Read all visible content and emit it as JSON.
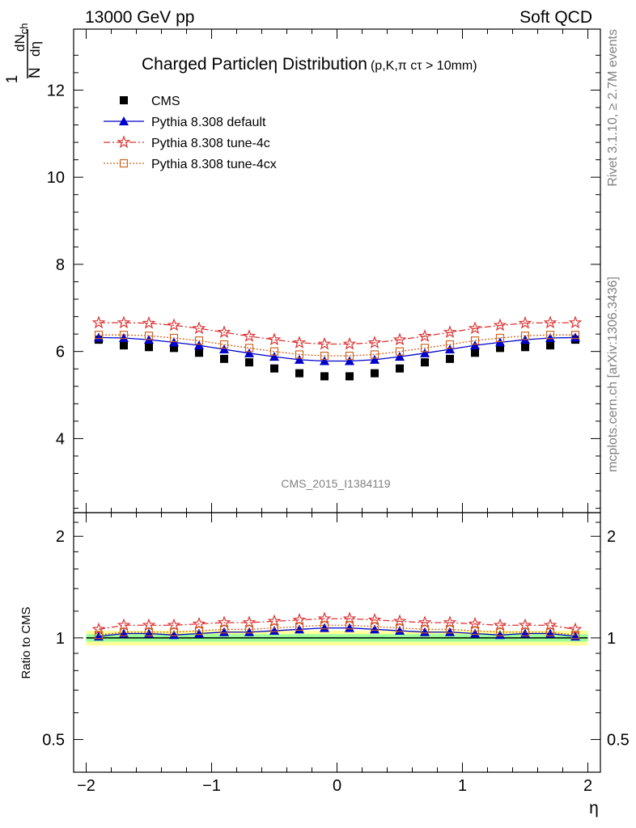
{
  "header": {
    "left": "13000 GeV pp",
    "right": "Soft QCD",
    "side_top": "Rivet 3.1.10, ≥ 2.7M events",
    "side_bottom": "mcplots.cern.ch [arXiv:1306.3436]",
    "analysis_id": "CMS_2015_I1384119"
  },
  "chart_data": {
    "type": "scatter",
    "title": "Charged Particleη Distribution",
    "title_suffix": "(p,K,π cτ > 10mm)",
    "ylabel_top": "1",
    "ylabel_bottom": "N",
    "ylabel_num": "dN",
    "ylabel_num_sub": "ch",
    "ylabel_den": "dη",
    "ratio_ylabel": "Ratio to CMS",
    "xlabel": "η",
    "xlim": [
      -2.1,
      2.1
    ],
    "ylim": [
      2.3,
      13.4
    ],
    "ratio_ylim": [
      0.4,
      2.35
    ],
    "ratio_log": true,
    "x_ticks": [
      "−2",
      "−1",
      "0",
      "1",
      "2"
    ],
    "x_tick_values": [
      -2,
      -1,
      0,
      1,
      2
    ],
    "y_ticks": [
      "4",
      "6",
      "8",
      "10",
      "12"
    ],
    "y_tick_values": [
      4,
      6,
      8,
      10,
      12
    ],
    "ratio_ticks": [
      "0.5",
      "1",
      "2"
    ],
    "ratio_tick_values": [
      0.5,
      1,
      2
    ],
    "x": [
      -1.9,
      -1.7,
      -1.5,
      -1.3,
      -1.1,
      -0.9,
      -0.7,
      -0.5,
      -0.3,
      -0.1,
      0.1,
      0.3,
      0.5,
      0.7,
      0.9,
      1.1,
      1.3,
      1.5,
      1.7,
      1.9
    ],
    "series": [
      {
        "name": "CMS",
        "key": "cms",
        "color": "#000000",
        "values": [
          6.27,
          6.14,
          6.1,
          6.08,
          5.97,
          5.83,
          5.75,
          5.61,
          5.5,
          5.43,
          5.43,
          5.5,
          5.61,
          5.75,
          5.83,
          5.97,
          6.08,
          6.1,
          6.14,
          6.27
        ]
      },
      {
        "name": "Pythia 8.308 default",
        "key": "default",
        "color": "#0000cc",
        "values": [
          6.32,
          6.31,
          6.27,
          6.21,
          6.14,
          6.05,
          5.96,
          5.88,
          5.81,
          5.78,
          5.78,
          5.81,
          5.88,
          5.96,
          6.05,
          6.14,
          6.21,
          6.27,
          6.31,
          6.32
        ],
        "ratio": [
          1.01,
          1.03,
          1.03,
          1.02,
          1.03,
          1.04,
          1.04,
          1.05,
          1.06,
          1.07,
          1.07,
          1.06,
          1.05,
          1.04,
          1.04,
          1.03,
          1.02,
          1.03,
          1.03,
          1.01
        ]
      },
      {
        "name": "Pythia 8.308 tune-4c",
        "key": "tune4c",
        "color": "#dd3333",
        "values": [
          6.66,
          6.66,
          6.65,
          6.6,
          6.53,
          6.44,
          6.35,
          6.27,
          6.2,
          6.17,
          6.17,
          6.2,
          6.27,
          6.35,
          6.44,
          6.53,
          6.6,
          6.65,
          6.66,
          6.66
        ],
        "ratio": [
          1.06,
          1.09,
          1.09,
          1.09,
          1.1,
          1.11,
          1.11,
          1.12,
          1.13,
          1.14,
          1.14,
          1.13,
          1.12,
          1.11,
          1.11,
          1.1,
          1.09,
          1.09,
          1.09,
          1.06
        ]
      },
      {
        "name": "Pythia 8.308 tune-4cx",
        "key": "tune4cx",
        "color": "#cc6622",
        "values": [
          6.38,
          6.38,
          6.36,
          6.31,
          6.25,
          6.16,
          6.08,
          6.0,
          5.93,
          5.9,
          5.9,
          5.93,
          6.0,
          6.08,
          6.16,
          6.25,
          6.31,
          6.36,
          6.38,
          6.38
        ],
        "ratio": [
          1.02,
          1.04,
          1.04,
          1.04,
          1.05,
          1.06,
          1.06,
          1.07,
          1.08,
          1.09,
          1.09,
          1.08,
          1.07,
          1.06,
          1.06,
          1.05,
          1.04,
          1.04,
          1.04,
          1.02
        ]
      }
    ],
    "ratio_bands": {
      "outer": 0.05,
      "inner": 0.025,
      "outer_color": "#ffff99",
      "inner_color": "#99ff99"
    },
    "legend_placement": "top-left",
    "grid": false
  }
}
